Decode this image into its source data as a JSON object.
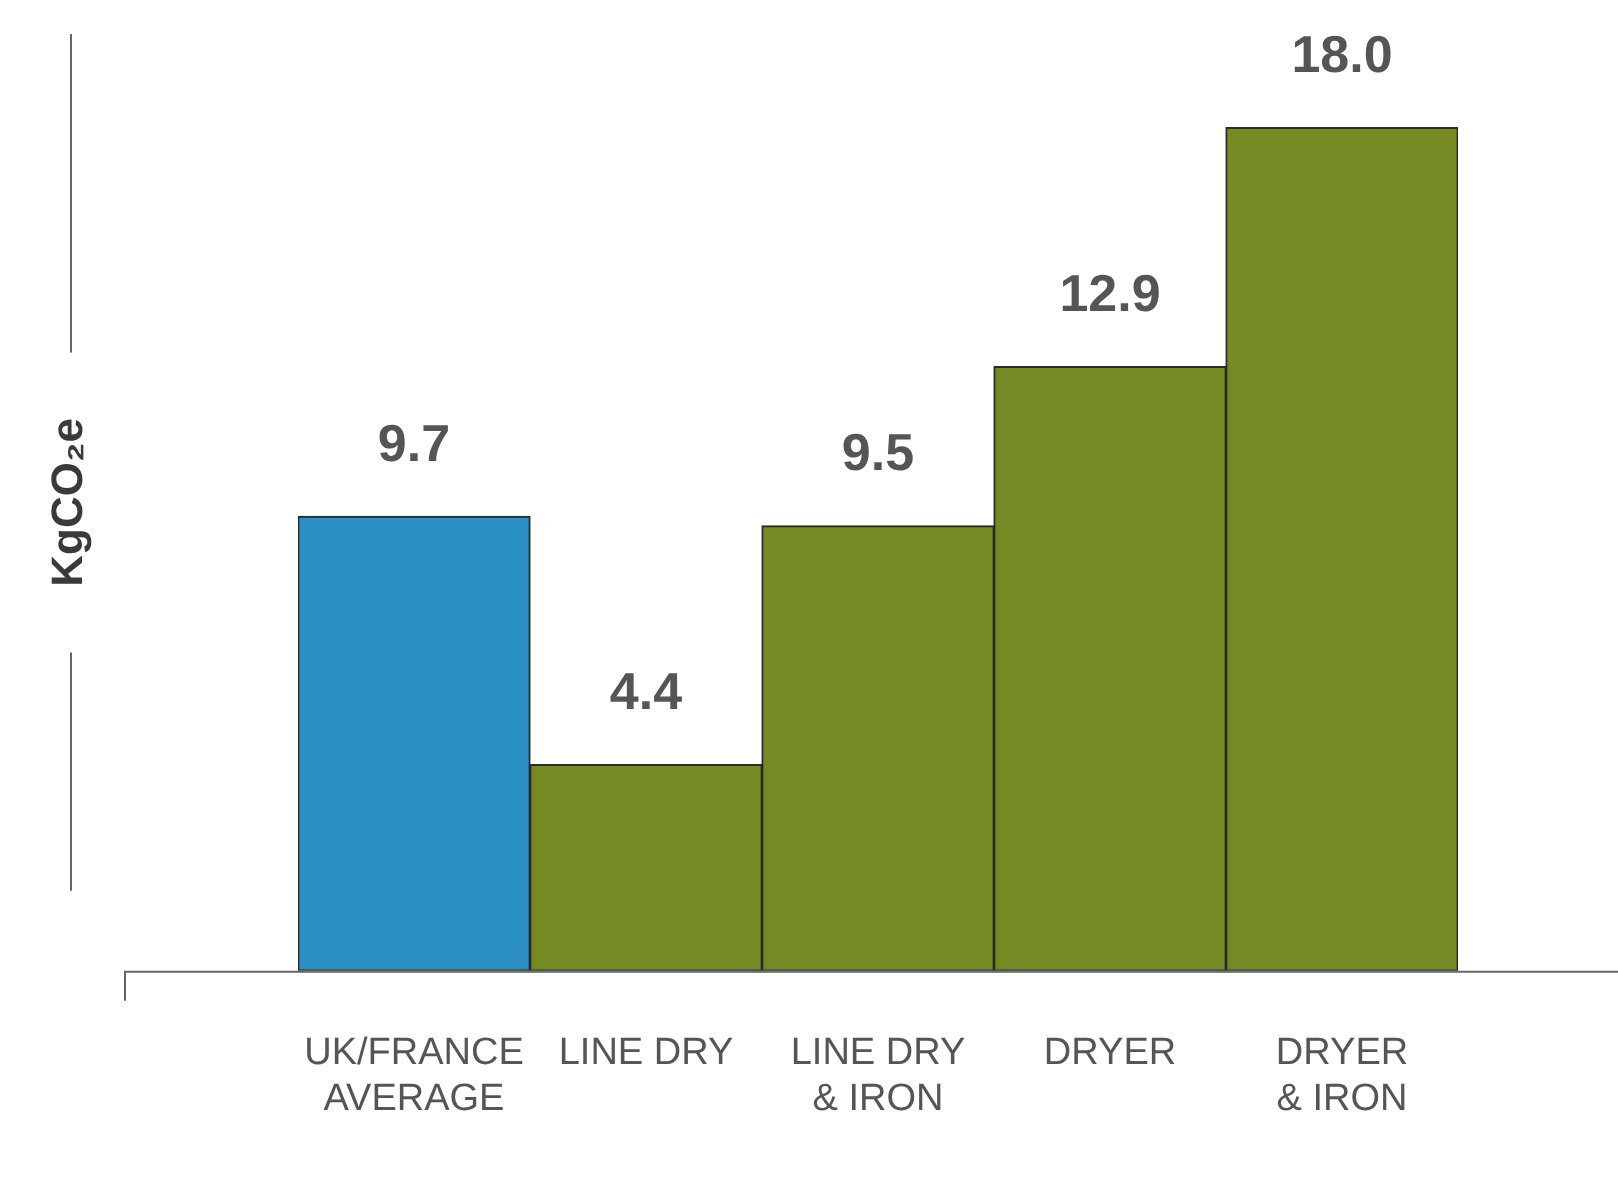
{
  "chart_data": {
    "type": "bar",
    "ylabel": "KgCO₂e",
    "categories": [
      "UK/FRANCE\nAVERAGE",
      "LINE DRY",
      "LINE DRY\n& IRON",
      "DRYER",
      "DRYER\n& IRON"
    ],
    "values": [
      9.7,
      4.4,
      9.5,
      12.9,
      18.0
    ],
    "colors": [
      "#2b8fc4",
      "#758a22",
      "#758a22",
      "#758a22",
      "#758a22"
    ],
    "value_labels": [
      "9.7",
      "4.4",
      "9.5",
      "12.9",
      "18.0"
    ],
    "grid": false,
    "legend": false
  }
}
